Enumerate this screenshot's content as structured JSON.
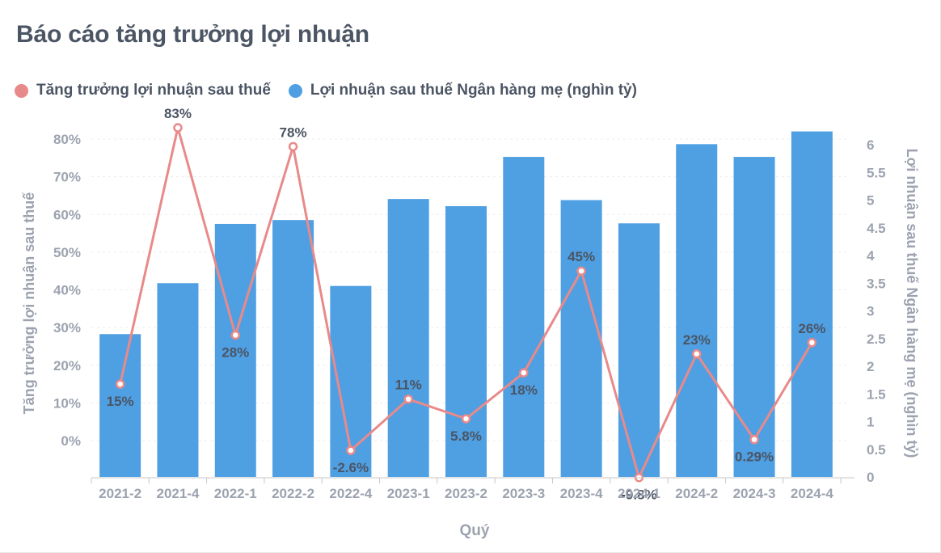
{
  "header": {
    "title": "Báo cáo tăng trưởng lợi nhuận"
  },
  "legend": {
    "line_label": "Tăng trưởng lợi nhuận sau thuế",
    "bar_label": "Lợi nhuận sau thuế Ngân hàng mẹ (nghìn tỷ)"
  },
  "colors": {
    "bar": "#4f9fe3",
    "line": "#e98a8a",
    "text": "#4b5563",
    "axis": "#9ca3af"
  },
  "chart_data": {
    "type": "bar",
    "xlabel": "Quý",
    "ylabel_left": "Tăng trưởng lợi nhuận sau thuế",
    "ylabel_right": "Lợi nhuận sau thuế Ngân hàng mẹ (nghìn tỷ)",
    "categories": [
      "2021-2",
      "2021-4",
      "2022-1",
      "2022-2",
      "2022-4",
      "2023-1",
      "2023-2",
      "2023-3",
      "2023-4",
      "2024-1",
      "2024-2",
      "2024-3",
      "2024-4"
    ],
    "series": [
      {
        "name": "Lợi nhuận sau thuế Ngân hàng mẹ (nghìn tỷ)",
        "type": "bar",
        "axis": "right",
        "values": [
          2.58,
          3.5,
          4.57,
          4.64,
          3.45,
          5.02,
          4.89,
          5.78,
          5.0,
          4.58,
          6.01,
          5.78,
          6.24
        ]
      },
      {
        "name": "Tăng trưởng lợi nhuận sau thuế",
        "type": "line",
        "axis": "left",
        "values": [
          15,
          83,
          28,
          78,
          -2.6,
          11,
          5.8,
          18,
          45,
          -9.8,
          23,
          0.29,
          26
        ],
        "labels": [
          "15%",
          "83%",
          "28%",
          "78%",
          "-2.6%",
          "11%",
          "5.8%",
          "18%",
          "45%",
          "-9.8%",
          "23%",
          "0.29%",
          "26%"
        ]
      }
    ],
    "left_axis": {
      "min": -10,
      "max": 80,
      "ticks": [
        0,
        10,
        20,
        30,
        40,
        50,
        60,
        70,
        80
      ],
      "tick_labels": [
        "0%",
        "10%",
        "20%",
        "30%",
        "40%",
        "50%",
        "60%",
        "70%",
        "80%"
      ]
    },
    "right_axis": {
      "min": 0,
      "max": 6,
      "ticks": [
        0,
        0.5,
        1,
        1.5,
        2,
        2.5,
        3,
        3.5,
        4,
        4.5,
        5,
        5.5,
        6
      ],
      "tick_labels": [
        "0",
        "0.5",
        "1",
        "1.5",
        "2",
        "2.5",
        "3",
        "3.5",
        "4",
        "4.5",
        "5",
        "5.5",
        "6"
      ]
    },
    "grid": true,
    "legend_position": "top-left"
  }
}
